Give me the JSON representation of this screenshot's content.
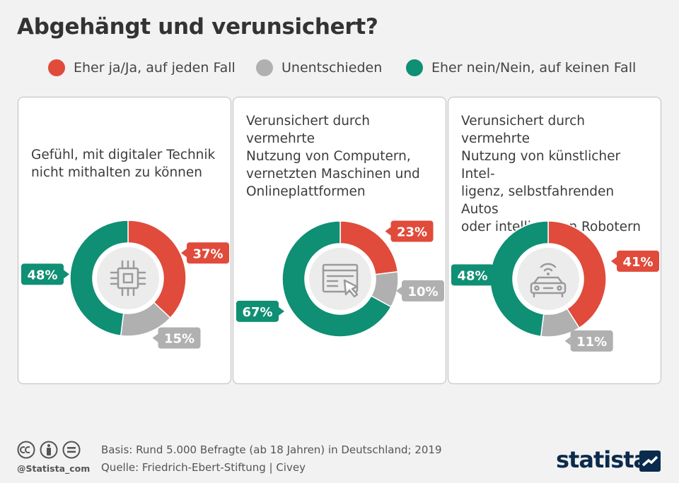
{
  "title": "Abgehängt und verunsichert?",
  "legend": [
    {
      "label": "Eher ja/Ja, auf jeden Fall",
      "color": "#e04b3b"
    },
    {
      "label": "Unentschieden",
      "color": "#b0b0b0"
    },
    {
      "label": "Eher nein/Nein, auf keinen Fall",
      "color": "#0f8f73"
    }
  ],
  "chart_data": [
    {
      "type": "pie",
      "title_lines": [
        "Gefühl, mit digitaler Technik",
        "nicht mithalten zu können"
      ],
      "categories": [
        "Eher ja/Ja, auf jeden Fall",
        "Unentschieden",
        "Eher nein/Nein, auf keinen Fall"
      ],
      "values": [
        37,
        15,
        48
      ],
      "labels": [
        "37%",
        "15%",
        "48%"
      ],
      "icon": "chip-icon"
    },
    {
      "type": "pie",
      "title_lines": [
        "Verunsichert durch vermehrte",
        "Nutzung von Computern,",
        "vernetzten Maschinen und",
        "Onlineplattformen"
      ],
      "categories": [
        "Eher ja/Ja, auf jeden Fall",
        "Unentschieden",
        "Eher nein/Nein, auf keinen Fall"
      ],
      "values": [
        23,
        10,
        67
      ],
      "labels": [
        "23%",
        "10%",
        "67%"
      ],
      "icon": "browser-cursor-icon"
    },
    {
      "type": "pie",
      "title_lines": [
        "Verunsichert durch vermehrte",
        "Nutzung von künstlicher Intel-",
        "ligenz, selbstfahrenden Autos",
        "oder intelligenten Robotern"
      ],
      "categories": [
        "Eher ja/Ja, auf jeden Fall",
        "Unentschieden",
        "Eher nein/Nein, auf keinen Fall"
      ],
      "values": [
        41,
        11,
        48
      ],
      "labels": [
        "41%",
        "11%",
        "48%"
      ],
      "icon": "connected-car-icon"
    }
  ],
  "footer": {
    "handle": "@Statista_com",
    "basis": "Basis: Rund 5.000 Befragte (ab 18 Jahren) in Deutschland; 2019",
    "source": "Quelle: Friedrich-Ebert-Stiftung | Civey",
    "brand": "statista"
  }
}
